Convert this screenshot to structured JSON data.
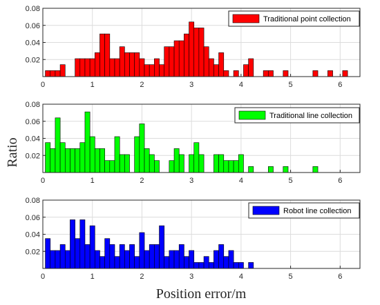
{
  "chart_data": {
    "type": "bar",
    "xlabel": "Position error/m",
    "ylabel": "Ratio",
    "xlim": [
      0,
      6.4
    ],
    "ylim": [
      0,
      0.08
    ],
    "xticks": [
      "0",
      "1",
      "2",
      "3",
      "4",
      "5",
      "6"
    ],
    "yticks": [
      "0.02",
      "0.04",
      "0.06",
      "0.08"
    ],
    "grid": true,
    "legend_position": "top-right",
    "panels": [
      {
        "legend": "Traditional point collection",
        "color": "#ff0000",
        "x": [
          0.1,
          0.2,
          0.3,
          0.4,
          0.7,
          0.8,
          0.9,
          1.0,
          1.1,
          1.2,
          1.3,
          1.4,
          1.5,
          1.6,
          1.7,
          1.8,
          1.9,
          2.0,
          2.1,
          2.2,
          2.3,
          2.4,
          2.5,
          2.6,
          2.7,
          2.8,
          2.9,
          3.0,
          3.1,
          3.2,
          3.3,
          3.4,
          3.5,
          3.6,
          3.7,
          3.9,
          4.1,
          4.2,
          4.5,
          4.6,
          4.9,
          5.5,
          5.8,
          6.1
        ],
        "values": [
          0.007,
          0.007,
          0.007,
          0.014,
          0.021,
          0.021,
          0.021,
          0.021,
          0.028,
          0.05,
          0.05,
          0.021,
          0.021,
          0.035,
          0.028,
          0.028,
          0.028,
          0.021,
          0.014,
          0.014,
          0.021,
          0.014,
          0.035,
          0.035,
          0.042,
          0.042,
          0.05,
          0.064,
          0.057,
          0.057,
          0.035,
          0.021,
          0.014,
          0.028,
          0.007,
          0.007,
          0.014,
          0.021,
          0.007,
          0.007,
          0.007,
          0.007,
          0.007,
          0.007
        ]
      },
      {
        "legend": "Traditional line collection",
        "color": "#00ff00",
        "x": [
          0.1,
          0.2,
          0.3,
          0.4,
          0.5,
          0.6,
          0.7,
          0.8,
          0.9,
          1.0,
          1.1,
          1.2,
          1.3,
          1.4,
          1.5,
          1.6,
          1.7,
          1.9,
          2.0,
          2.1,
          2.2,
          2.3,
          2.6,
          2.7,
          2.8,
          3.0,
          3.1,
          3.2,
          3.5,
          3.6,
          3.7,
          3.8,
          3.9,
          4.0,
          4.2,
          4.6,
          4.9,
          5.5
        ],
        "values": [
          0.035,
          0.028,
          0.064,
          0.035,
          0.028,
          0.028,
          0.028,
          0.035,
          0.071,
          0.042,
          0.028,
          0.028,
          0.014,
          0.014,
          0.042,
          0.021,
          0.021,
          0.042,
          0.057,
          0.028,
          0.021,
          0.014,
          0.014,
          0.028,
          0.021,
          0.021,
          0.035,
          0.021,
          0.021,
          0.021,
          0.014,
          0.014,
          0.014,
          0.021,
          0.007,
          0.007,
          0.007,
          0.007
        ]
      },
      {
        "legend": "Robot line collection",
        "color": "#0000ff",
        "x": [
          0.1,
          0.2,
          0.3,
          0.4,
          0.5,
          0.6,
          0.7,
          0.8,
          0.9,
          1.0,
          1.1,
          1.2,
          1.3,
          1.4,
          1.5,
          1.6,
          1.7,
          1.8,
          1.9,
          2.0,
          2.1,
          2.2,
          2.3,
          2.4,
          2.5,
          2.6,
          2.7,
          2.8,
          2.9,
          3.0,
          3.1,
          3.2,
          3.3,
          3.4,
          3.5,
          3.6,
          3.7,
          3.8,
          3.9,
          4.0,
          4.2
        ],
        "values": [
          0.035,
          0.021,
          0.021,
          0.028,
          0.021,
          0.057,
          0.035,
          0.057,
          0.028,
          0.05,
          0.021,
          0.014,
          0.035,
          0.028,
          0.014,
          0.028,
          0.021,
          0.028,
          0.014,
          0.042,
          0.021,
          0.028,
          0.028,
          0.05,
          0.014,
          0.021,
          0.021,
          0.028,
          0.014,
          0.021,
          0.007,
          0.007,
          0.014,
          0.007,
          0.021,
          0.028,
          0.014,
          0.021,
          0.007,
          0.007,
          0.007
        ]
      }
    ]
  }
}
